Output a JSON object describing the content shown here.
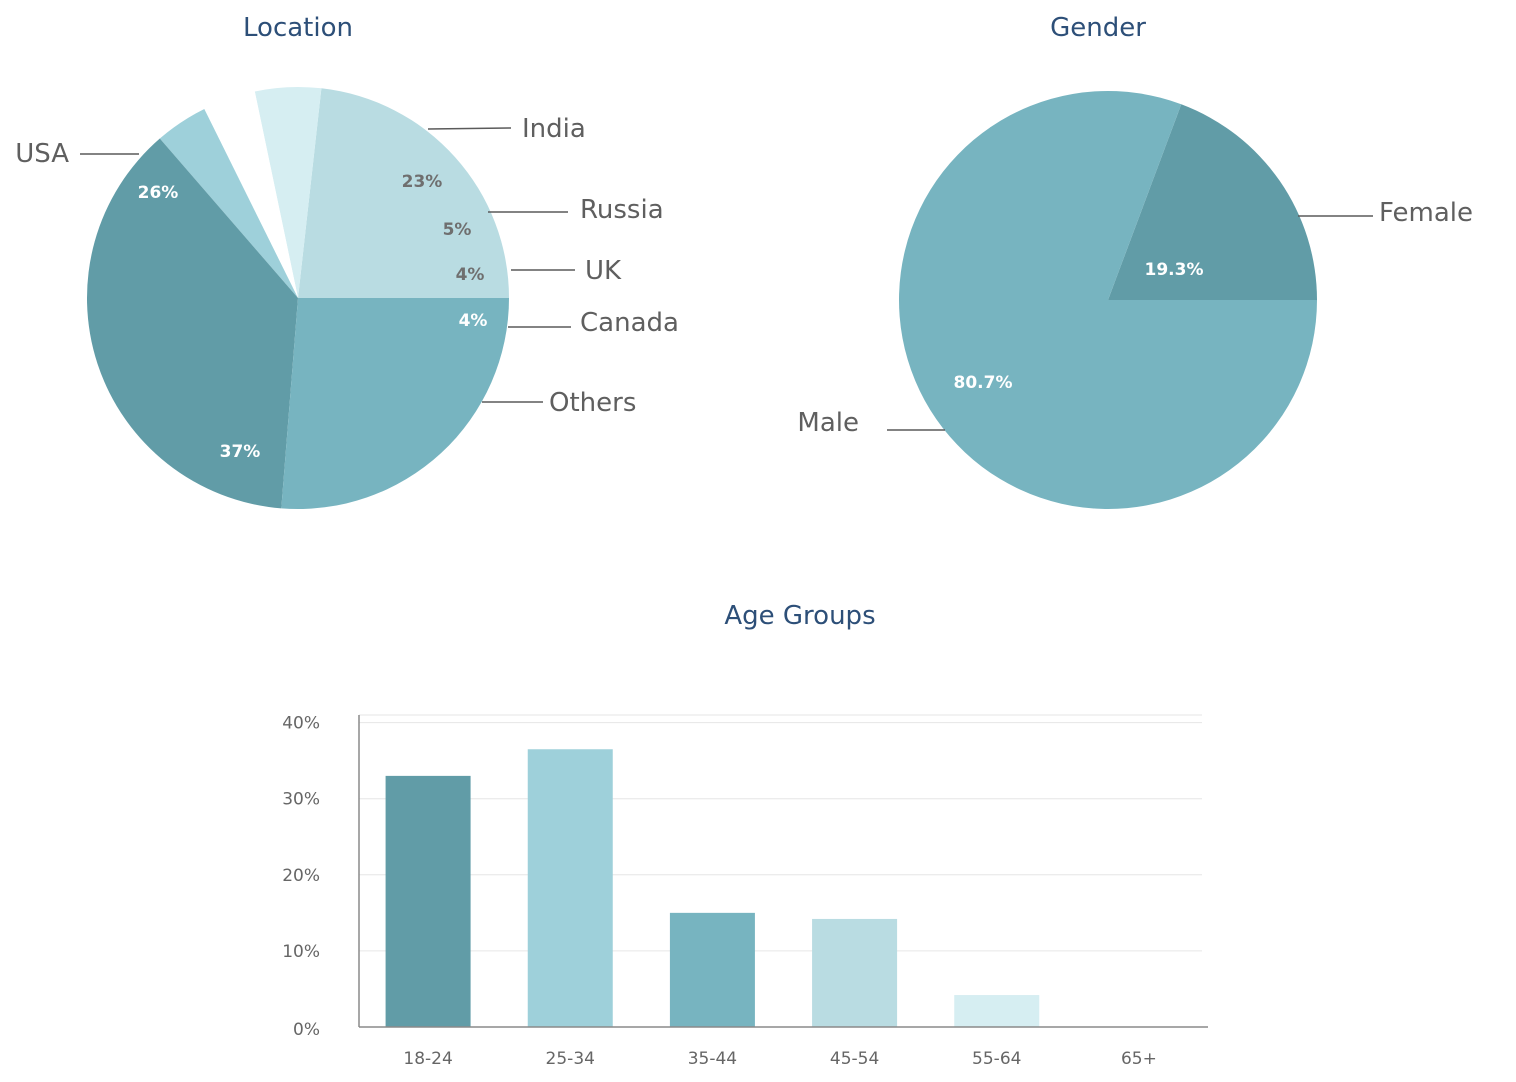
{
  "chart_data": [
    {
      "type": "pie",
      "title": "Location",
      "slices": [
        {
          "label": "India",
          "value": 23,
          "value_label": "23%",
          "color": "#b9dce2",
          "pct_style": "dark"
        },
        {
          "label": "Russia",
          "value": 5,
          "value_label": "5%",
          "color": "#d6eef2",
          "pct_style": "dark"
        },
        {
          "label": "UK",
          "value": 4,
          "value_label": "4%",
          "color": "#ffffff",
          "pct_style": "dark"
        },
        {
          "label": "Canada",
          "value": 4,
          "value_label": "4%",
          "color": "#9ed0da",
          "pct_style": "light"
        },
        {
          "label": "Others",
          "value": 37,
          "value_label": "37%",
          "color": "#619ca7",
          "pct_style": "light"
        },
        {
          "label": "USA",
          "value": 26,
          "value_label": "26%",
          "color": "#77b4c0",
          "pct_style": "light"
        }
      ]
    },
    {
      "type": "pie",
      "title": "Gender",
      "slices": [
        {
          "label": "Female",
          "value": 19.3,
          "value_label": "19.3%",
          "color": "#619ca7",
          "pct_style": "light"
        },
        {
          "label": "Male",
          "value": 80.7,
          "value_label": "80.7%",
          "color": "#77b4c0",
          "pct_style": "light"
        }
      ]
    },
    {
      "type": "bar",
      "title": "Age Groups",
      "categories": [
        "18-24",
        "25-34",
        "35-44",
        "45-54",
        "55-64",
        "65+"
      ],
      "values": [
        33,
        36.5,
        15,
        14.2,
        4.2,
        0
      ],
      "bar_colors": [
        "#619ca7",
        "#9ed0da",
        "#77b4c0",
        "#b9dce2",
        "#d6eef2",
        "#ffffff"
      ],
      "y_ticks": [
        0,
        10,
        20,
        30,
        40
      ],
      "y_tick_labels": [
        "0%",
        "10%",
        "20%",
        "30%",
        "40%"
      ],
      "ylim": [
        0,
        41
      ],
      "grid": true,
      "legend": false
    }
  ]
}
